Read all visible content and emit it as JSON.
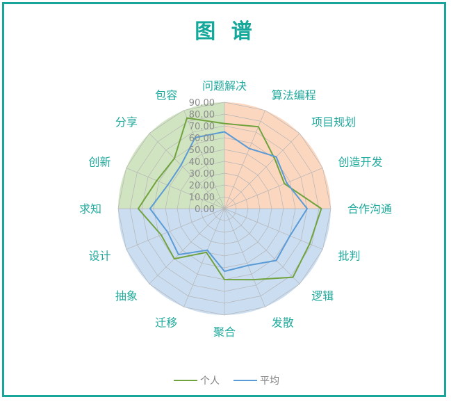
{
  "title": "图 谱",
  "chart_data": {
    "type": "radar",
    "title": "图 谱",
    "categories": [
      "问题解决",
      "算法编程",
      "项目规划",
      "创造开发",
      "合作沟通",
      "批判",
      "逻辑",
      "发散",
      "聚合",
      "迁移",
      "抽象",
      "设计",
      "求知",
      "创新",
      "分享",
      "包容"
    ],
    "rlim": [
      0,
      90
    ],
    "ticks": [
      "0.00",
      "10.00",
      "20.00",
      "30.00",
      "40.00",
      "50.00",
      "60.00",
      "70.00",
      "80.00",
      "90.00"
    ],
    "series": [
      {
        "name": "个人",
        "color": "#70a23e",
        "values": [
          72,
          75,
          60,
          55,
          82,
          78,
          82,
          65,
          60,
          40,
          60,
          58,
          73,
          62,
          60,
          83
        ]
      },
      {
        "name": "平均",
        "color": "#5b9bd5",
        "values": [
          65,
          55,
          62,
          57,
          70,
          60,
          62,
          52,
          53,
          38,
          55,
          52,
          63,
          52,
          52,
          65
        ]
      }
    ],
    "background_sectors": [
      {
        "color": "#f7b78d",
        "start": 0,
        "end": 4
      },
      {
        "color": "#9fc1e6",
        "start": 4,
        "end": 12
      },
      {
        "color": "#aacd8e",
        "start": 12,
        "end": 16
      }
    ],
    "grid": true,
    "legend_position": "bottom"
  }
}
